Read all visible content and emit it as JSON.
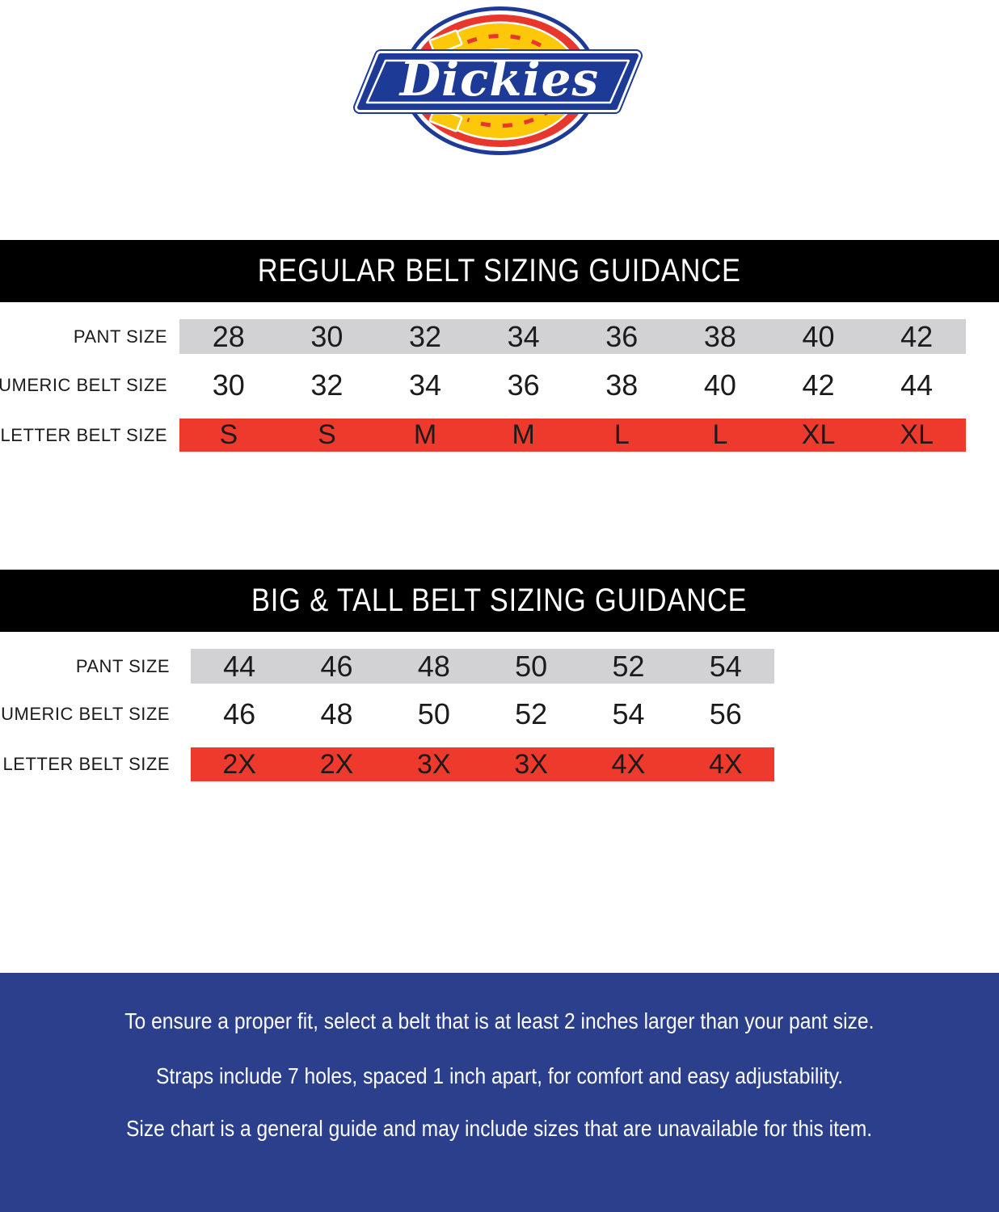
{
  "logo": {
    "brand": "Dickies"
  },
  "tables": [
    {
      "title": "REGULAR BELT SIZING GUIDANCE",
      "rows": [
        {
          "label": "PANT SIZE",
          "values": [
            "28",
            "30",
            "32",
            "34",
            "36",
            "38",
            "40",
            "42"
          ]
        },
        {
          "label": "NUMERIC BELT SIZE",
          "values": [
            "30",
            "32",
            "34",
            "36",
            "38",
            "40",
            "42",
            "44"
          ]
        },
        {
          "label": "LETTER BELT SIZE",
          "values": [
            "S",
            "S",
            "M",
            "M",
            "L",
            "L",
            "XL",
            "XL"
          ]
        }
      ]
    },
    {
      "title": "BIG & TALL BELT SIZING GUIDANCE",
      "rows": [
        {
          "label": "PANT SIZE",
          "values": [
            "44",
            "46",
            "48",
            "50",
            "52",
            "54"
          ]
        },
        {
          "label": "NUMERIC BELT SIZE",
          "values": [
            "46",
            "48",
            "50",
            "52",
            "54",
            "56"
          ]
        },
        {
          "label": "LETTER BELT SIZE",
          "values": [
            "2X",
            "2X",
            "3X",
            "3X",
            "4X",
            "4X"
          ]
        }
      ]
    }
  ],
  "footer": {
    "lines": [
      "To ensure a proper fit, select a belt that is at least 2 inches larger than your pant size.",
      "Straps include 7 holes, spaced 1 inch apart, for comfort and easy adjustability.",
      "Size chart is a general guide and may include sizes that are unavailable for this item."
    ]
  },
  "colors": {
    "banner_black": "#000000",
    "band_gray": "#d2d2d4",
    "band_red": "#ee3a2d",
    "footer_blue": "#2b3f8c",
    "text_dark": "#1b1b1b",
    "logo_red": "#e8372c",
    "logo_blue": "#1d3b96",
    "logo_yellow": "#fdc70a"
  }
}
